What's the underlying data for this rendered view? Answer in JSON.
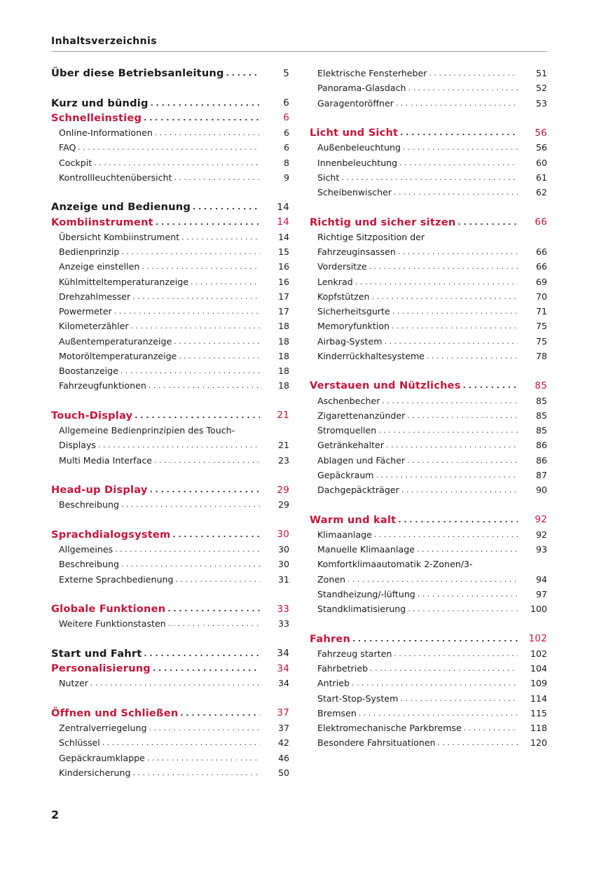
{
  "header": {
    "title": "Inhaltsverzeichnis"
  },
  "footer": {
    "page_number": "2"
  },
  "colors": {
    "section_red": "#c5163a",
    "text": "#1a1a1a"
  },
  "columns": [
    {
      "lines": [
        {
          "type": "heading",
          "title": "Über diese Betriebsanleitung",
          "page": "5"
        },
        {
          "type": "gap"
        },
        {
          "type": "heading",
          "title": "Kurz und bündig",
          "page": "6"
        },
        {
          "type": "section",
          "title": "Schnelleinstieg",
          "page": "6"
        },
        {
          "type": "item",
          "title": "Online-Informationen",
          "page": "6"
        },
        {
          "type": "item",
          "title": "FAQ",
          "page": "6"
        },
        {
          "type": "item",
          "title": "Cockpit",
          "page": "8"
        },
        {
          "type": "item",
          "title": "Kontrollleuchtenübersicht",
          "page": "9"
        },
        {
          "type": "gap"
        },
        {
          "type": "heading",
          "title": "Anzeige und Bedienung",
          "page": "14"
        },
        {
          "type": "section",
          "title": "Kombiinstrument",
          "page": "14"
        },
        {
          "type": "item",
          "title": "Übersicht Kombiinstrument",
          "page": "14"
        },
        {
          "type": "item",
          "title": "Bedienprinzip",
          "page": "15"
        },
        {
          "type": "item",
          "title": "Anzeige einstellen",
          "page": "16"
        },
        {
          "type": "item",
          "title": "Kühlmitteltemperaturanzeige",
          "page": "16"
        },
        {
          "type": "item",
          "title": "Drehzahlmesser",
          "page": "17"
        },
        {
          "type": "item",
          "title": "Powermeter",
          "page": "17"
        },
        {
          "type": "item",
          "title": "Kilometerzähler",
          "page": "18"
        },
        {
          "type": "item",
          "title": "Außentemperaturanzeige",
          "page": "18"
        },
        {
          "type": "item",
          "title": "Motoröltemperaturanzeige",
          "page": "18"
        },
        {
          "type": "item",
          "title": "Boostanzeige",
          "page": "18"
        },
        {
          "type": "item",
          "title": "Fahrzeugfunktionen",
          "page": "18"
        },
        {
          "type": "gap"
        },
        {
          "type": "section",
          "title": "Touch-Display",
          "page": "21"
        },
        {
          "type": "item",
          "title": "Allgemeine Bedienprinzipien des Touch-",
          "page": ""
        },
        {
          "type": "item",
          "title": "Displays",
          "page": "21"
        },
        {
          "type": "item",
          "title": "Multi Media Interface",
          "page": "23"
        },
        {
          "type": "gap"
        },
        {
          "type": "section",
          "title": "Head-up Display",
          "page": "29"
        },
        {
          "type": "item",
          "title": "Beschreibung",
          "page": "29"
        },
        {
          "type": "gap"
        },
        {
          "type": "section",
          "title": "Sprachdialogsystem",
          "page": "30"
        },
        {
          "type": "item",
          "title": "Allgemeines",
          "page": "30"
        },
        {
          "type": "item",
          "title": "Beschreibung",
          "page": "30"
        },
        {
          "type": "item",
          "title": "Externe Sprachbedienung",
          "page": "31"
        },
        {
          "type": "gap"
        },
        {
          "type": "section",
          "title": "Globale Funktionen",
          "page": "33"
        },
        {
          "type": "item",
          "title": "Weitere Funktionstasten",
          "page": "33"
        },
        {
          "type": "gap"
        },
        {
          "type": "heading",
          "title": "Start und Fahrt",
          "page": "34"
        },
        {
          "type": "section",
          "title": "Personalisierung",
          "page": "34"
        },
        {
          "type": "item",
          "title": "Nutzer",
          "page": "34"
        },
        {
          "type": "gap"
        },
        {
          "type": "section",
          "title": "Öffnen und Schließen",
          "page": "37"
        },
        {
          "type": "item",
          "title": "Zentralverriegelung",
          "page": "37"
        },
        {
          "type": "item",
          "title": "Schlüssel",
          "page": "42"
        },
        {
          "type": "item",
          "title": "Gepäckraumklappe",
          "page": "46"
        },
        {
          "type": "item",
          "title": "Kindersicherung",
          "page": "50"
        }
      ]
    },
    {
      "lines": [
        {
          "type": "item",
          "title": "Elektrische Fensterheber",
          "page": "51"
        },
        {
          "type": "item",
          "title": "Panorama-Glasdach",
          "page": "52"
        },
        {
          "type": "item",
          "title": "Garagentoröffner",
          "page": "53"
        },
        {
          "type": "gap"
        },
        {
          "type": "section",
          "title": "Licht und Sicht",
          "page": "56"
        },
        {
          "type": "item",
          "title": "Außenbeleuchtung",
          "page": "56"
        },
        {
          "type": "item",
          "title": "Innenbeleuchtung",
          "page": "60"
        },
        {
          "type": "item",
          "title": "Sicht",
          "page": "61"
        },
        {
          "type": "item",
          "title": "Scheibenwischer",
          "page": "62"
        },
        {
          "type": "gap"
        },
        {
          "type": "section",
          "title": "Richtig und sicher sitzen",
          "page": "66"
        },
        {
          "type": "item",
          "title": "Richtige Sitzposition der",
          "page": ""
        },
        {
          "type": "item",
          "title": "Fahrzeuginsassen",
          "page": "66"
        },
        {
          "type": "item",
          "title": "Vordersitze",
          "page": "66"
        },
        {
          "type": "item",
          "title": "Lenkrad",
          "page": "69"
        },
        {
          "type": "item",
          "title": "Kopfstützen",
          "page": "70"
        },
        {
          "type": "item",
          "title": "Sicherheitsgurte",
          "page": "71"
        },
        {
          "type": "item",
          "title": "Memoryfunktion",
          "page": "75"
        },
        {
          "type": "item",
          "title": "Airbag-System",
          "page": "75"
        },
        {
          "type": "item",
          "title": "Kinderrückhaltesysteme",
          "page": "78"
        },
        {
          "type": "gap"
        },
        {
          "type": "section",
          "title": "Verstauen und Nützliches",
          "page": "85"
        },
        {
          "type": "item",
          "title": "Aschenbecher",
          "page": "85"
        },
        {
          "type": "item",
          "title": "Zigarettenanzünder",
          "page": "85"
        },
        {
          "type": "item",
          "title": "Stromquellen",
          "page": "85"
        },
        {
          "type": "item",
          "title": "Getränkehalter",
          "page": "86"
        },
        {
          "type": "item",
          "title": "Ablagen und Fächer",
          "page": "86"
        },
        {
          "type": "item",
          "title": "Gepäckraum",
          "page": "87"
        },
        {
          "type": "item",
          "title": "Dachgepäckträger",
          "page": "90"
        },
        {
          "type": "gap"
        },
        {
          "type": "section",
          "title": "Warm und kalt",
          "page": "92"
        },
        {
          "type": "item",
          "title": "Klimaanlage",
          "page": "92"
        },
        {
          "type": "item",
          "title": "Manuelle Klimaanlage",
          "page": "93"
        },
        {
          "type": "item",
          "title": "Komfortklimaautomatik 2-Zonen/3-",
          "page": ""
        },
        {
          "type": "item",
          "title": "Zonen",
          "page": "94"
        },
        {
          "type": "item",
          "title": "Standheizung/-lüftung",
          "page": "97"
        },
        {
          "type": "item",
          "title": "Standklimatisierung",
          "page": "100"
        },
        {
          "type": "gap"
        },
        {
          "type": "section",
          "title": "Fahren",
          "page": "102"
        },
        {
          "type": "item",
          "title": "Fahrzeug starten",
          "page": "102"
        },
        {
          "type": "item",
          "title": "Fahrbetrieb",
          "page": "104"
        },
        {
          "type": "item",
          "title": "Antrieb",
          "page": "109"
        },
        {
          "type": "item",
          "title": "Start-Stop-System",
          "page": "114"
        },
        {
          "type": "item",
          "title": "Bremsen",
          "page": "115"
        },
        {
          "type": "item",
          "title": "Elektromechanische Parkbremse",
          "page": "118"
        },
        {
          "type": "item",
          "title": "Besondere Fahrsituationen",
          "page": "120"
        }
      ]
    }
  ]
}
